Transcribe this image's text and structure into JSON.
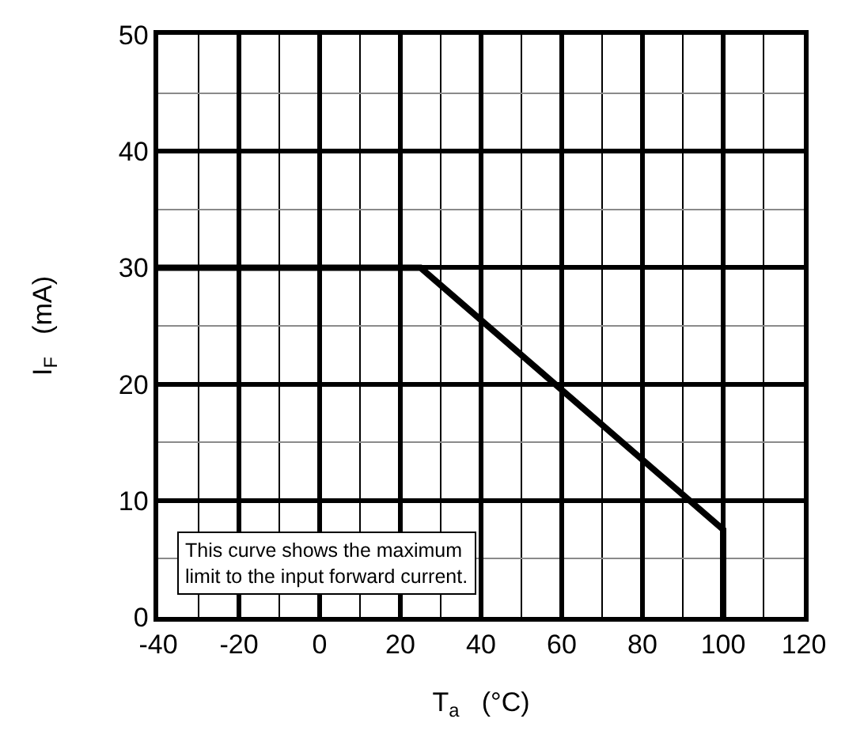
{
  "chart_data": {
    "type": "line",
    "x": [
      -40,
      25,
      100,
      100
    ],
    "series": [
      {
        "color": "#000000",
        "values": [
          30,
          30,
          7.5,
          0
        ]
      }
    ],
    "xlabel": "T$_{a}$   (°C)",
    "ylabel": "I$_{F}$   (mA)",
    "xlim": [
      -40,
      120
    ],
    "xticks": [
      -40,
      -20,
      0,
      20,
      40,
      60,
      80,
      100,
      120
    ],
    "ylim": [
      0,
      50
    ],
    "yticks": [
      0,
      10,
      20,
      30,
      40,
      50
    ],
    "grid": true,
    "marker": "none",
    "line_style": "solid",
    "annotations": [
      "This curve shows the maximum\nlimit to the input forward current."
    ]
  }
}
